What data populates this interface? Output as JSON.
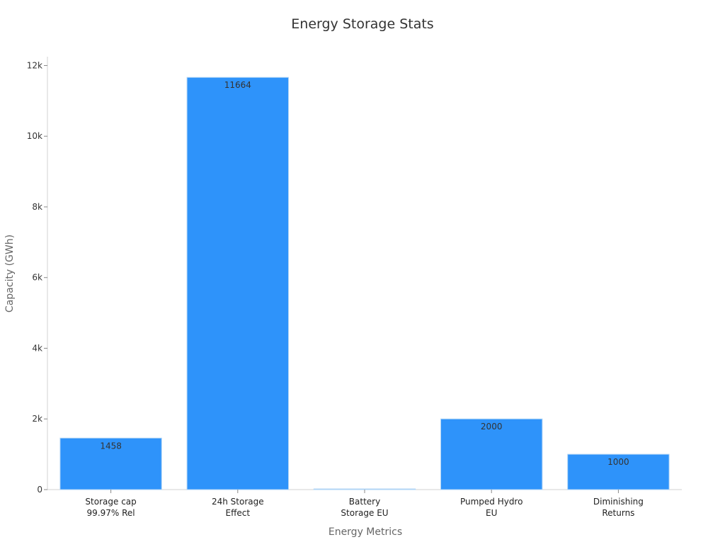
{
  "chart_data": {
    "type": "bar",
    "title": "Energy Storage Stats",
    "xlabel": "Energy Metrics",
    "ylabel": "Capacity (GWh)",
    "categories": [
      [
        "Storage cap",
        "99.97% Rel"
      ],
      [
        "24h Storage",
        "Effect"
      ],
      [
        "Battery",
        "Storage EU"
      ],
      [
        "Pumped Hydro",
        "EU"
      ],
      [
        "Diminishing",
        "Returns"
      ]
    ],
    "values": [
      1458,
      11664,
      20,
      2000,
      1000
    ],
    "data_labels": [
      "1458",
      "11664",
      "",
      "2000",
      "1000"
    ],
    "ylim": [
      0,
      12250
    ],
    "yticks": [
      0,
      2000,
      4000,
      6000,
      8000,
      10000,
      12000
    ],
    "ytick_labels": [
      "0",
      "2k",
      "4k",
      "6k",
      "8k",
      "10k",
      "12k"
    ],
    "grid": false,
    "legend": "none",
    "colors": {
      "bar": "#2e93fa",
      "bar_edge": "#b0d4f5",
      "axis": "#d0d0d0",
      "text": "#333333",
      "label": "#666666"
    }
  }
}
